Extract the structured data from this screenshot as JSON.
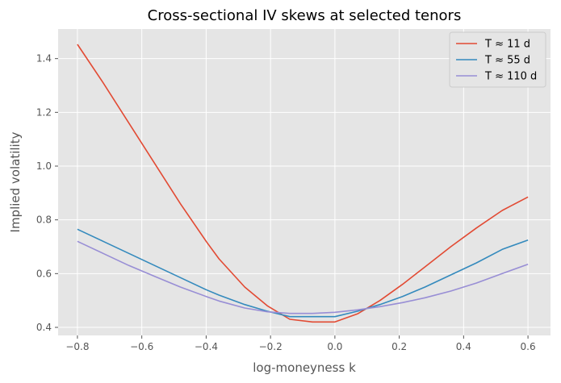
{
  "chart_data": {
    "type": "line",
    "title": "Cross-sectional IV skews at selected tenors",
    "xlabel": "log-moneyness k",
    "ylabel": "Implied volatility",
    "xlim": [
      -0.86,
      0.67
    ],
    "ylim": [
      0.37,
      1.51
    ],
    "xticks": [
      -0.8,
      -0.6,
      -0.4,
      -0.2,
      0.0,
      0.2,
      0.4,
      0.6
    ],
    "xtick_labels": [
      "−0.8",
      "−0.6",
      "−0.4",
      "−0.2",
      "0.0",
      "0.2",
      "0.4",
      "0.6"
    ],
    "yticks": [
      0.4,
      0.6,
      0.8,
      1.0,
      1.2,
      1.4
    ],
    "ytick_labels": [
      "0.4",
      "0.6",
      "0.8",
      "1.0",
      "1.2",
      "1.4"
    ],
    "grid": true,
    "legend_position": "top-right",
    "x": [
      -0.8,
      -0.72,
      -0.64,
      -0.56,
      -0.48,
      -0.4,
      -0.36,
      -0.28,
      -0.21,
      -0.14,
      -0.07,
      0.0,
      0.07,
      0.14,
      0.21,
      0.28,
      0.36,
      0.44,
      0.52,
      0.6
    ],
    "series": [
      {
        "name": "T ≈ 11 d",
        "color": "#E24A33",
        "values": [
          1.453,
          1.31,
          1.16,
          1.01,
          0.86,
          0.72,
          0.655,
          0.55,
          0.48,
          0.43,
          0.42,
          0.42,
          0.45,
          0.5,
          0.56,
          0.625,
          0.7,
          0.77,
          0.835,
          0.885
        ]
      },
      {
        "name": "T ≈ 55 d",
        "color": "#348ABD",
        "values": [
          0.765,
          0.72,
          0.675,
          0.63,
          0.585,
          0.54,
          0.52,
          0.485,
          0.46,
          0.44,
          0.44,
          0.44,
          0.46,
          0.485,
          0.515,
          0.55,
          0.595,
          0.64,
          0.69,
          0.725
        ]
      },
      {
        "name": "T ≈ 110 d",
        "color": "#988ED5",
        "values": [
          0.72,
          0.675,
          0.63,
          0.59,
          0.55,
          0.515,
          0.498,
          0.472,
          0.458,
          0.452,
          0.452,
          0.456,
          0.465,
          0.477,
          0.492,
          0.51,
          0.535,
          0.565,
          0.6,
          0.635
        ]
      }
    ]
  }
}
